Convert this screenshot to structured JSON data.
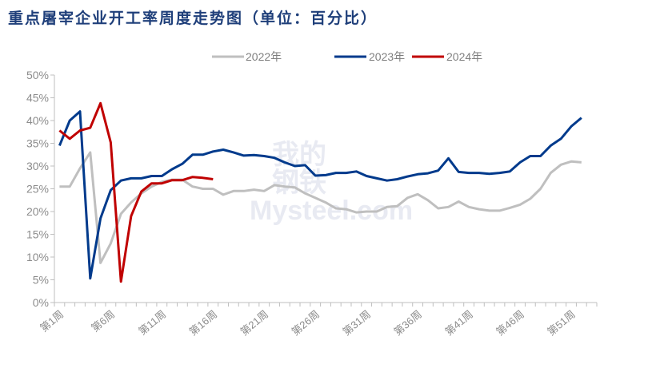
{
  "chart_data": {
    "type": "line",
    "title": "重点屠宰企业开工率周度走势图（单位：百分比）",
    "xlabel": "",
    "ylabel": "",
    "ylim": [
      0,
      50
    ],
    "yticks": [
      "0%",
      "5%",
      "10%",
      "15%",
      "20%",
      "25%",
      "30%",
      "35%",
      "40%",
      "45%",
      "50%"
    ],
    "xtick_labels": [
      "第1周",
      "第6周",
      "第11周",
      "第16周",
      "第21周",
      "第26周",
      "第31周",
      "第36周",
      "第41周",
      "第46周",
      "第51周"
    ],
    "x_weeks": 53,
    "grid": false,
    "legend_position": "top",
    "watermark": "我的钢铁 Mysteel.com",
    "series": [
      {
        "name": "2022年",
        "color": "#bfbfbf",
        "values": [
          25.5,
          25.5,
          29.5,
          33,
          8.7,
          13,
          19.5,
          22,
          24,
          25.5,
          26.5,
          27,
          27,
          25.5,
          25,
          25,
          23.7,
          24.5,
          24.5,
          24.8,
          24.5,
          25.8,
          25.5,
          25.3,
          24,
          23,
          22,
          20.7,
          20.5,
          19.8,
          20,
          20,
          21,
          21.2,
          23,
          23.8,
          22.5,
          20.7,
          21,
          22.2,
          21,
          20.5,
          20.2,
          20.2,
          20.8,
          21.5,
          22.8,
          25,
          28.5,
          30.3,
          31,
          30.8
        ]
      },
      {
        "name": "2023年",
        "color": "#003a8c",
        "values": [
          34.5,
          40,
          42,
          5.3,
          18.5,
          24.7,
          26.8,
          27.3,
          27.3,
          27.8,
          27.8,
          29.3,
          30.5,
          32.5,
          32.5,
          33.2,
          33.6,
          33,
          32.3,
          32.4,
          32.2,
          31.8,
          30.8,
          30,
          30.2,
          27.9,
          28,
          28.5,
          28.5,
          28.8,
          27.8,
          27.3,
          26.8,
          27.1,
          27.7,
          28.2,
          28.4,
          29,
          31.7,
          28.7,
          28.5,
          28.5,
          28.3,
          28.5,
          28.8,
          30.8,
          32.2,
          32.2,
          34.5,
          36,
          38.7,
          40.6
        ]
      },
      {
        "name": "2024年",
        "color": "#c00000",
        "values": [
          37.8,
          36,
          37.8,
          38.4,
          43.8,
          35.2,
          4.6,
          19,
          24.4,
          26.2,
          26.2,
          26.9,
          26.9,
          27.6,
          27.4,
          27.1
        ]
      }
    ]
  }
}
